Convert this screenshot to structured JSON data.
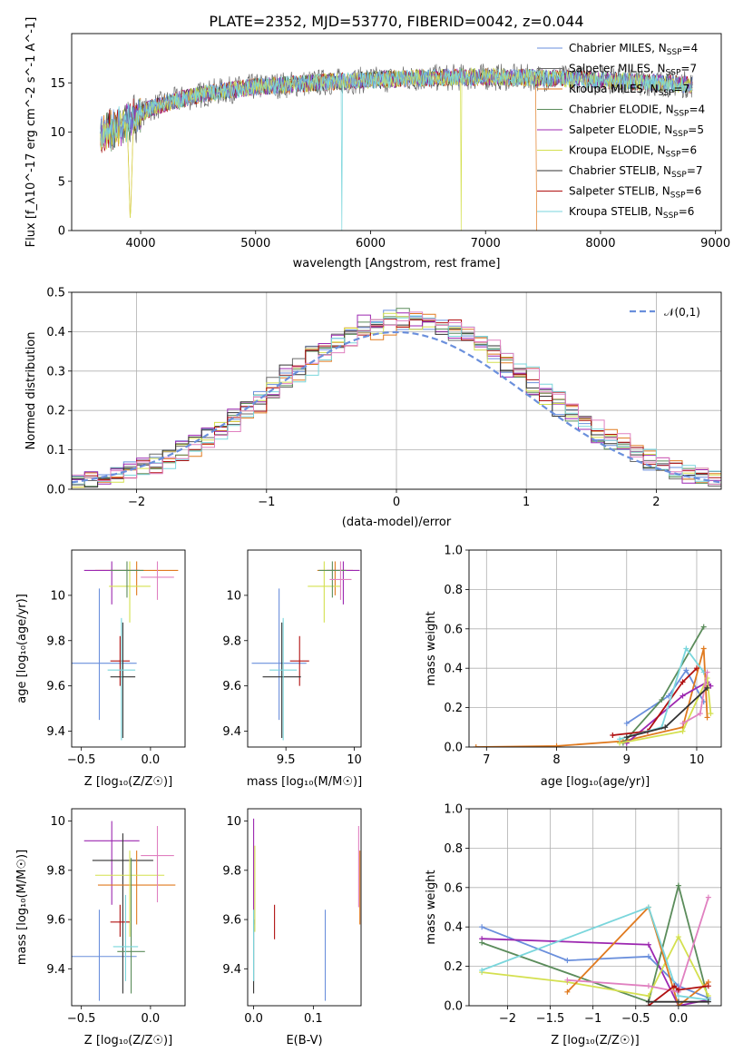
{
  "figure_title": "PLATE=2352, MJD=53770, FIBERID=0042, z=0.044",
  "colors": {
    "chabrier_miles": "#6a8fdc",
    "salpeter_miles": "#6a6a6a",
    "kroupa_miles": "#e07a1f",
    "chabrier_elodie": "#5b8c5b",
    "salpeter_elodie": "#9c27b0",
    "kroupa_elodie": "#d4e04f",
    "chabrier_stelib": "#333333",
    "salpeter_stelib": "#b01010",
    "kroupa_stelib": "#7ad6dc",
    "extra_pink": "#e080c0",
    "gaussian": "#6a8fdc",
    "grid": "#b0b0b0"
  },
  "chart_data": [
    {
      "id": "spectrum",
      "type": "line",
      "title": "PLATE=2352, MJD=53770, FIBERID=0042, z=0.044",
      "xlabel": "wavelength [Angstrom, rest frame]",
      "ylabel": "Flux [f_λ10^-17 erg cm^-2 s^-1 A^-1]",
      "xlim": [
        3400,
        9050
      ],
      "ylim": [
        0,
        20
      ],
      "xticks": [
        4000,
        5000,
        6000,
        7000,
        8000,
        9000
      ],
      "yticks": [
        0,
        5,
        10,
        15
      ],
      "grid": false,
      "legend_position": "top-right",
      "legend": [
        "Chabrier MILES, N_SSP=4",
        "Salpeter MILES, N_SSP=7",
        "Kroupa MILES, N_SSP=7",
        "Chabrier ELODIE, N_SSP=4",
        "Salpeter ELODIE, N_SSP=5",
        "Kroupa ELODIE, N_SSP=6",
        "Chabrier STELIB, N_SSP=7",
        "Salpeter STELIB, N_SSP=6",
        "Kroupa STELIB, N_SSP=6"
      ],
      "continuum": {
        "x": [
          3650,
          3800,
          3950,
          4100,
          4300,
          4600,
          5000,
          5500,
          6000,
          6500,
          7000,
          7500,
          8000,
          8500,
          8800
        ],
        "y": [
          9.5,
          10.5,
          11.5,
          12.5,
          13.2,
          14.0,
          14.6,
          15.0,
          15.3,
          15.5,
          15.6,
          15.5,
          15.3,
          15.0,
          14.8
        ]
      },
      "dips": [
        {
          "x": 3910,
          "y": 0.0
        },
        {
          "x": 5750,
          "y": 0.0
        },
        {
          "x": 6790,
          "y": 0.0
        },
        {
          "x": 7440,
          "y": 0.0
        }
      ]
    },
    {
      "id": "residuals",
      "type": "bar",
      "xlabel": "(data-model)/error",
      "ylabel": "Normed distribution",
      "xlim": [
        -2.5,
        2.5
      ],
      "ylim": [
        0,
        0.5
      ],
      "xticks": [
        -2,
        -1,
        0,
        1,
        2
      ],
      "yticks": [
        0.0,
        0.1,
        0.2,
        0.3,
        0.4,
        0.5
      ],
      "grid": true,
      "legend_position": "top-right",
      "legend": [
        "𝒩(0,1)"
      ],
      "bin_width": 0.1,
      "bin_start": -2.5,
      "n_bins": 50
    },
    {
      "id": "z-age",
      "type": "scatter",
      "xlabel": "Z [log₁₀(Z/Z☉)]",
      "ylabel": "age  [log₁₀(age/yr)]",
      "xlim": [
        -0.57,
        0.25
      ],
      "ylim": [
        9.33,
        10.2
      ],
      "xticks": [
        -0.5,
        0.0
      ],
      "yticks": [
        9.4,
        9.6,
        9.8,
        10.0
      ],
      "grid": false,
      "points": [
        {
          "series": "chabrier_miles",
          "x": -0.37,
          "y": 9.7,
          "xerr": 0.27,
          "yerr": [
            9.45,
            10.03
          ]
        },
        {
          "series": "kroupa_miles",
          "x": -0.1,
          "y": 10.11,
          "xerr": 0.3,
          "yerr": [
            10.0,
            10.15
          ]
        },
        {
          "series": "salpeter_elodie",
          "x": -0.28,
          "y": 10.11,
          "xerr": 0.2,
          "yerr": [
            9.96,
            10.15
          ]
        },
        {
          "series": "kroupa_elodie",
          "x": -0.15,
          "y": 10.04,
          "xerr": 0.15,
          "yerr": [
            9.88,
            10.15
          ]
        },
        {
          "series": "chabrier_elodie",
          "x": -0.17,
          "y": 10.11,
          "xerr": 0.12,
          "yerr": [
            9.99,
            10.15
          ]
        },
        {
          "series": "extra_pink",
          "x": 0.05,
          "y": 10.08,
          "xerr": 0.12,
          "yerr": [
            9.98,
            10.15
          ]
        },
        {
          "series": "salpeter_stelib",
          "x": -0.22,
          "y": 9.71,
          "xerr": 0.07,
          "yerr": [
            9.6,
            9.82
          ]
        },
        {
          "series": "chabrier_stelib",
          "x": -0.2,
          "y": 9.64,
          "xerr": 0.09,
          "yerr": [
            9.37,
            9.88
          ]
        },
        {
          "series": "kroupa_stelib",
          "x": -0.21,
          "y": 9.67,
          "xerr": 0.1,
          "yerr": [
            9.36,
            9.9
          ]
        }
      ]
    },
    {
      "id": "mass-age",
      "type": "scatter",
      "xlabel": "mass [log₁₀(M/M☉)]",
      "ylabel": "",
      "xlim": [
        9.22,
        10.05
      ],
      "ylim": [
        9.33,
        10.2
      ],
      "xticks": [
        9.5,
        10.0
      ],
      "yticks": [
        9.4,
        9.6,
        9.8,
        10.0
      ],
      "grid": false,
      "points": [
        {
          "series": "chabrier_miles",
          "x": 9.45,
          "y": 9.7,
          "xerr": 0.2,
          "yerr": [
            9.45,
            10.03
          ]
        },
        {
          "series": "kroupa_miles",
          "x": 9.86,
          "y": 10.11,
          "xerr": 0.13,
          "yerr": [
            10.0,
            10.15
          ]
        },
        {
          "series": "salpeter_elodie",
          "x": 9.92,
          "y": 10.11,
          "xerr": 0.12,
          "yerr": [
            9.96,
            10.15
          ]
        },
        {
          "series": "kroupa_elodie",
          "x": 9.78,
          "y": 10.04,
          "xerr": 0.12,
          "yerr": [
            9.88,
            10.15
          ]
        },
        {
          "series": "chabrier_elodie",
          "x": 9.84,
          "y": 10.11,
          "xerr": 0.1,
          "yerr": [
            9.99,
            10.15
          ]
        },
        {
          "series": "extra_pink",
          "x": 9.9,
          "y": 10.07,
          "xerr": 0.08,
          "yerr": [
            9.98,
            10.15
          ]
        },
        {
          "series": "salpeter_stelib",
          "x": 9.6,
          "y": 9.71,
          "xerr": 0.07,
          "yerr": [
            9.6,
            9.82
          ]
        },
        {
          "series": "chabrier_stelib",
          "x": 9.47,
          "y": 9.64,
          "xerr": 0.14,
          "yerr": [
            9.37,
            9.88
          ]
        },
        {
          "series": "kroupa_stelib",
          "x": 9.48,
          "y": 9.67,
          "xerr": 0.1,
          "yerr": [
            9.36,
            9.9
          ]
        }
      ]
    },
    {
      "id": "age-weight",
      "type": "line",
      "xlabel": "age  [log₁₀(age/yr)]",
      "ylabel": "mass weight",
      "xlim": [
        6.75,
        10.35
      ],
      "ylim": [
        0,
        1.0
      ],
      "xticks": [
        7,
        8,
        9,
        10
      ],
      "yticks": [
        0.0,
        0.2,
        0.4,
        0.6,
        0.8,
        1.0
      ],
      "grid": true,
      "series": [
        {
          "name": "chabrier_miles",
          "x": [
            9.0,
            9.6,
            9.85,
            10.1
          ],
          "y": [
            0.12,
            0.26,
            0.39,
            0.23
          ]
        },
        {
          "name": "kroupa_miles",
          "x": [
            6.85,
            8.0,
            8.95,
            9.8,
            10.1,
            10.15
          ],
          "y": [
            0.0,
            0.005,
            0.03,
            0.1,
            0.5,
            0.15
          ]
        },
        {
          "name": "chabrier_elodie",
          "x": [
            8.95,
            9.5,
            10.1
          ],
          "y": [
            0.02,
            0.24,
            0.61
          ]
        },
        {
          "name": "salpeter_elodie",
          "x": [
            9.0,
            9.8,
            10.15,
            10.2
          ],
          "y": [
            0.02,
            0.26,
            0.33,
            0.31
          ]
        },
        {
          "name": "kroupa_elodie",
          "x": [
            8.9,
            9.8,
            10.15,
            10.2
          ],
          "y": [
            0.02,
            0.08,
            0.35,
            0.17
          ]
        },
        {
          "name": "salpeter_stelib",
          "x": [
            8.8,
            9.3,
            9.8,
            10.0
          ],
          "y": [
            0.06,
            0.08,
            0.33,
            0.4
          ]
        },
        {
          "name": "kroupa_stelib",
          "x": [
            8.9,
            9.5,
            9.85,
            10.1
          ],
          "y": [
            0.04,
            0.1,
            0.5,
            0.38
          ]
        },
        {
          "name": "extra_pink",
          "x": [
            9.8,
            10.05,
            10.15
          ],
          "y": [
            0.12,
            0.17,
            0.38
          ]
        },
        {
          "name": "chabrier_stelib",
          "x": [
            9.0,
            9.55,
            10.15
          ],
          "y": [
            0.05,
            0.1,
            0.3
          ]
        }
      ]
    },
    {
      "id": "z-mass",
      "type": "scatter",
      "xlabel": "Z [log₁₀(Z/Z☉)]",
      "ylabel": "mass [log₁₀(M/M☉)]",
      "xlim": [
        -0.57,
        0.25
      ],
      "ylim": [
        9.25,
        10.05
      ],
      "xticks": [
        -0.5,
        0.0
      ],
      "yticks": [
        9.4,
        9.6,
        9.8,
        10.0
      ],
      "grid": false,
      "points": [
        {
          "series": "chabrier_miles",
          "x": -0.37,
          "y": 9.45,
          "xerr": 0.27,
          "yerr": [
            9.27,
            9.64
          ]
        },
        {
          "series": "salpeter_elodie",
          "x": -0.28,
          "y": 9.92,
          "xerr": 0.2,
          "yerr": [
            9.66,
            10.0
          ]
        },
        {
          "series": "chabrier_stelib",
          "x": -0.2,
          "y": 9.84,
          "xerr": 0.22,
          "yerr": [
            9.3,
            9.95
          ]
        },
        {
          "series": "kroupa_miles",
          "x": -0.1,
          "y": 9.74,
          "xerr": 0.28,
          "yerr": [
            9.58,
            9.88
          ]
        },
        {
          "series": "kroupa_elodie",
          "x": -0.15,
          "y": 9.78,
          "xerr": 0.25,
          "yerr": [
            9.53,
            9.88
          ]
        },
        {
          "series": "extra_pink",
          "x": 0.05,
          "y": 9.86,
          "xerr": 0.12,
          "yerr": [
            9.67,
            9.98
          ]
        },
        {
          "series": "salpeter_stelib",
          "x": -0.22,
          "y": 9.59,
          "xerr": 0.07,
          "yerr": [
            9.53,
            9.66
          ]
        },
        {
          "series": "chabrier_elodie",
          "x": -0.14,
          "y": 9.47,
          "xerr": 0.1,
          "yerr": [
            9.3,
            9.85
          ]
        },
        {
          "series": "kroupa_stelib",
          "x": -0.18,
          "y": 9.49,
          "xerr": 0.09,
          "yerr": [
            9.35,
            9.7
          ]
        }
      ]
    },
    {
      "id": "ebv-mass",
      "type": "scatter",
      "xlabel": "E(B-V)",
      "ylabel": "",
      "xlim": [
        -0.01,
        0.18
      ],
      "ylim": [
        9.25,
        10.05
      ],
      "xticks": [
        0.0,
        0.1
      ],
      "yticks": [
        9.4,
        9.6,
        9.8,
        10.0
      ],
      "grid": false,
      "points": [
        {
          "series": "salpeter_elodie",
          "x": 0.0,
          "y": 9.8,
          "xerr": 0.0,
          "yerr": [
            9.58,
            10.01
          ]
        },
        {
          "series": "kroupa_elodie",
          "x": 0.002,
          "y": 9.7,
          "xerr": 0.0,
          "yerr": [
            9.55,
            9.9
          ]
        },
        {
          "series": "chabrier_stelib",
          "x": 0.0,
          "y": 9.45,
          "xerr": 0.0,
          "yerr": [
            9.3,
            9.6
          ]
        },
        {
          "series": "kroupa_stelib",
          "x": 0.0,
          "y": 9.5,
          "xerr": 0.0,
          "yerr": [
            9.35,
            9.64
          ]
        },
        {
          "series": "salpeter_stelib",
          "x": 0.035,
          "y": 9.59,
          "xerr": 0.0,
          "yerr": [
            9.52,
            9.66
          ]
        },
        {
          "series": "chabrier_miles",
          "x": 0.12,
          "y": 9.45,
          "xerr": 0.0,
          "yerr": [
            9.27,
            9.64
          ]
        },
        {
          "series": "kroupa_miles",
          "x": 0.178,
          "y": 9.75,
          "xerr": 0.0,
          "yerr": [
            9.58,
            9.88
          ]
        },
        {
          "series": "extra_pink",
          "x": 0.176,
          "y": 9.85,
          "xerr": 0.0,
          "yerr": [
            9.65,
            9.98
          ]
        }
      ]
    },
    {
      "id": "z-weight",
      "type": "line",
      "xlabel": "Z [log₁₀(Z/Z☉)]",
      "ylabel": "mass weight",
      "xlim": [
        -2.45,
        0.5
      ],
      "ylim": [
        0,
        1.0
      ],
      "xticks": [
        -2.0,
        -1.5,
        -1.0,
        -0.5,
        0.0
      ],
      "yticks": [
        0.0,
        0.2,
        0.4,
        0.6,
        0.8,
        1.0
      ],
      "grid": true,
      "series": [
        {
          "name": "chabrier_miles",
          "x": [
            -2.3,
            -1.3,
            -0.35,
            0.0,
            0.35
          ],
          "y": [
            0.4,
            0.23,
            0.25,
            0.1,
            0.04
          ]
        },
        {
          "name": "salpeter_elodie",
          "x": [
            -2.3,
            -0.35,
            0.0,
            0.35
          ],
          "y": [
            0.34,
            0.31,
            0.0,
            0.03
          ]
        },
        {
          "name": "chabrier_elodie",
          "x": [
            -2.3,
            -0.35,
            0.0,
            0.35
          ],
          "y": [
            0.32,
            0.02,
            0.61,
            0.03
          ]
        },
        {
          "name": "kroupa_elodie",
          "x": [
            -2.3,
            -1.3,
            -0.35,
            0.0,
            0.35
          ],
          "y": [
            0.17,
            0.12,
            0.05,
            0.35,
            0.05
          ]
        },
        {
          "name": "kroupa_miles",
          "x": [
            -1.3,
            -0.35,
            0.0,
            0.35
          ],
          "y": [
            0.07,
            0.5,
            0.0,
            0.12
          ]
        },
        {
          "name": "kroupa_stelib",
          "x": [
            -2.3,
            -0.35,
            0.0,
            0.35
          ],
          "y": [
            0.18,
            0.5,
            0.05,
            0.03
          ]
        },
        {
          "name": "extra_pink",
          "x": [
            -1.3,
            -0.35,
            0.0,
            0.35
          ],
          "y": [
            0.13,
            0.1,
            0.07,
            0.55
          ]
        },
        {
          "name": "salpeter_stelib",
          "x": [
            -0.35,
            -0.05,
            0.0,
            0.35
          ],
          "y": [
            0.0,
            0.1,
            0.08,
            0.1
          ]
        },
        {
          "name": "chabrier_stelib",
          "x": [
            -0.35,
            0.0,
            0.35
          ],
          "y": [
            0.02,
            0.02,
            0.02
          ]
        }
      ]
    }
  ]
}
